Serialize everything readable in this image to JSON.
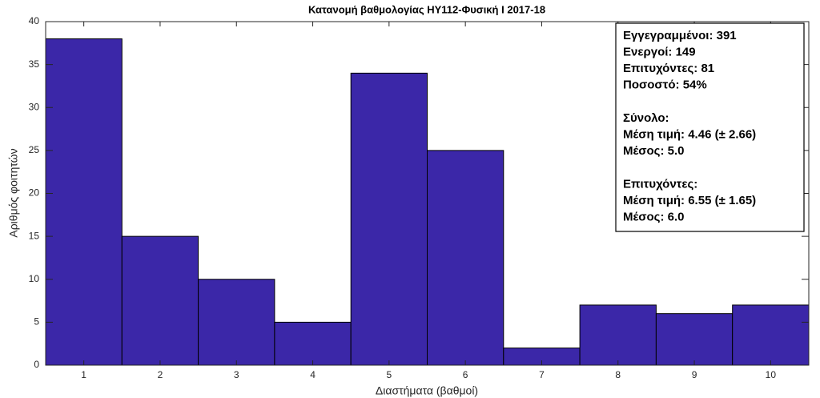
{
  "chart_data": {
    "type": "bar",
    "title": "Κατανομή βαθμολογίας ΗΥ112-Φυσική Ι 2017-18",
    "x_label": "Διαστήματα (βαθμοί)",
    "y_label": "Αριθμός φοιτητών",
    "categories": [
      "1",
      "2",
      "3",
      "4",
      "5",
      "6",
      "7",
      "8",
      "9",
      "10"
    ],
    "values": [
      38,
      15,
      10,
      5,
      34,
      25,
      2,
      7,
      6,
      7
    ],
    "color": "#3b27a8",
    "ylim": [
      0,
      40
    ],
    "yticks": [
      0,
      5,
      10,
      15,
      20,
      25,
      30,
      35,
      40
    ],
    "annotations": [
      [
        "Εγγεγραμμένοι: 391",
        "Ενεργοί: 149",
        "Επιτυχόντες: 81",
        "Ποσοστό: 54%"
      ],
      [
        "Σύνολο:",
        "Μέση τιμή: 4.46 (± 2.66)",
        "Μέσος: 5.0"
      ],
      [
        "Επιτυχόντες:",
        "Μέση τιμή: 6.55 (± 1.65)",
        "Μέσος: 6.0"
      ]
    ]
  }
}
